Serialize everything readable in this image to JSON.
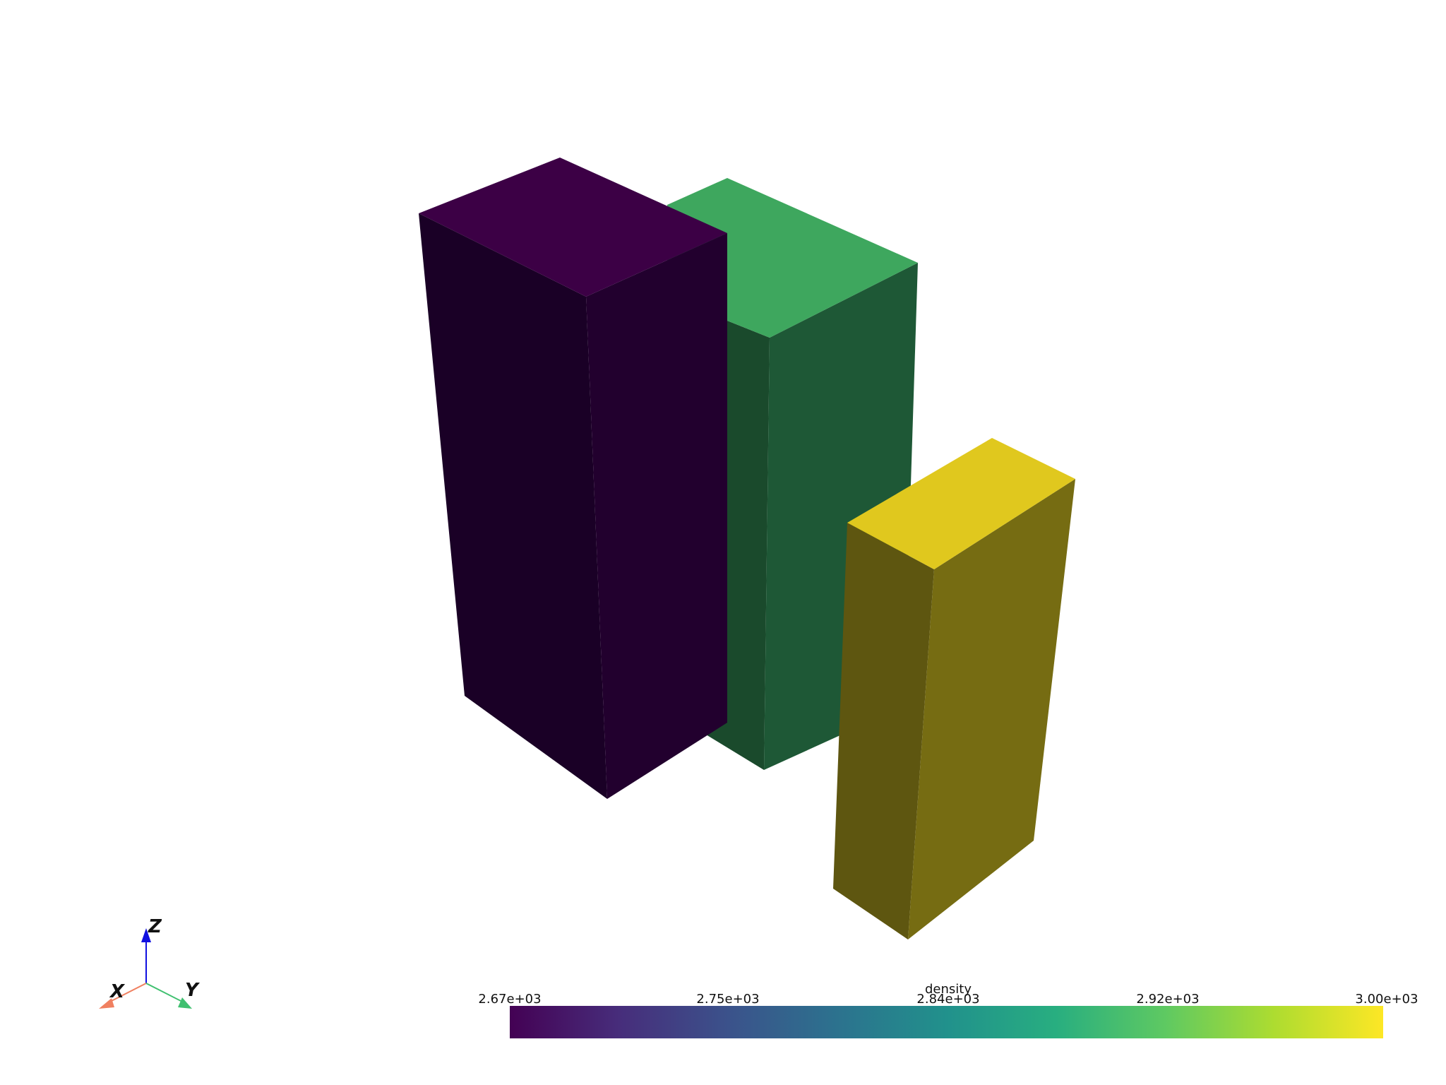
{
  "orientation_axes": {
    "x_label": "X",
    "y_label": "Y",
    "z_label": "Z",
    "x_color": "#f08060",
    "y_color": "#40c070",
    "z_color": "#1010e0"
  },
  "blocks": [
    {
      "name": "block-purple",
      "density": 2670,
      "color_top": "#3c0045",
      "color_left": "#1a0026",
      "color_right": "#22002e"
    },
    {
      "name": "block-green",
      "density": 2890,
      "color_top": "#3ea75e",
      "color_left": "#1a4a2c",
      "color_right": "#1e5836"
    },
    {
      "name": "block-yellow",
      "density": 3000,
      "color_top": "#e0c81e",
      "color_left": "#5e5610",
      "color_right": "#766c12"
    }
  ],
  "colorbar": {
    "title": "density",
    "colormap": "viridis",
    "range": [
      2670,
      3000
    ],
    "ticks": [
      "2.67e+03",
      "2.75e+03",
      "2.84e+03",
      "2.92e+03",
      "3.00e+03"
    ]
  }
}
